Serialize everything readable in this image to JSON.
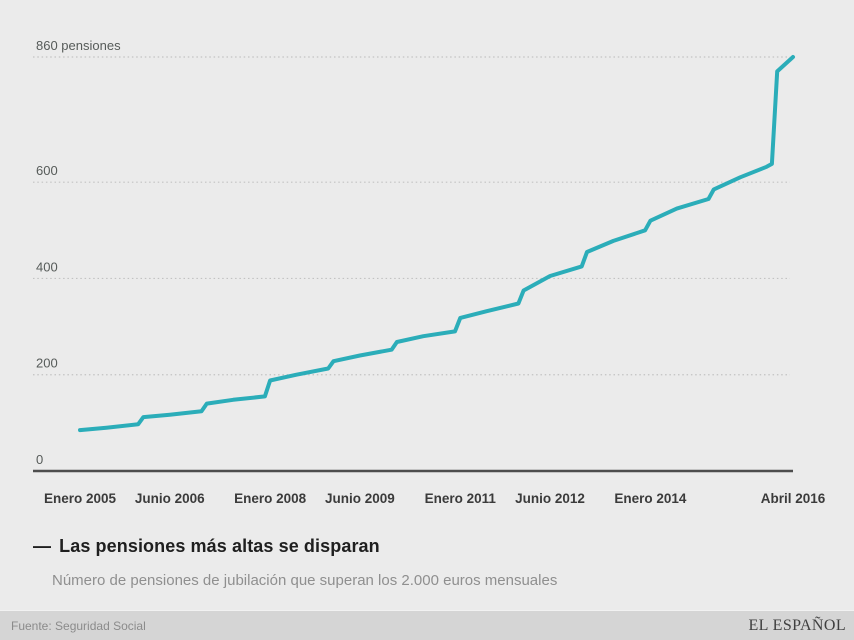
{
  "page": {
    "background": "#ebebeb",
    "footer_background": "#d5d5d5"
  },
  "chart": {
    "title_dash": "—",
    "title": "Las pensiones más altas se disparan",
    "subtitle": "Número de pensiones de jubilación que superan los 2.000 euros mensuales",
    "source": "Fuente: Seguridad Social",
    "brand": "EL ESPAÑOL",
    "line_color": "#2badb9",
    "grid_color": "#c2c2c2",
    "axis_color": "#4d4d4d",
    "y_label_color": "#565b59",
    "x_label_color": "#3b3b3b",
    "title_color": "#1f1f1f",
    "subtitle_color": "#8f8f8f"
  },
  "chart_data": {
    "type": "line",
    "title": "Las pensiones más altas se disparan",
    "subtitle": "Número de pensiones de jubilación que superan los 2.000 euros mensuales",
    "unit": "pensiones",
    "ylim": [
      0,
      860
    ],
    "grid": "dotted-horizontal",
    "legend": "none",
    "x_axis_type": "monthly, months counted from Enero 2005 (m=0) to Abril 2016 (m=135)",
    "x_ticks": [
      {
        "m": 0,
        "label": "Enero 2005"
      },
      {
        "m": 17,
        "label": "Junio 2006"
      },
      {
        "m": 36,
        "label": "Enero 2008"
      },
      {
        "m": 53,
        "label": "Junio 2009"
      },
      {
        "m": 72,
        "label": "Enero 2011"
      },
      {
        "m": 89,
        "label": "Junio 2012"
      },
      {
        "m": 108,
        "label": "Enero 2014"
      },
      {
        "m": 135,
        "label": "Abril 2016"
      }
    ],
    "y_ticks": [
      {
        "value": 0,
        "label": "0"
      },
      {
        "value": 200,
        "label": "200"
      },
      {
        "value": 400,
        "label": "400"
      },
      {
        "value": 600,
        "label": "600"
      },
      {
        "value": 860,
        "label": "860 pensiones"
      }
    ],
    "series": [
      {
        "name": "pensiones de jubilación que superan los 2.000 euros mensuales",
        "points_format": [
          "months_since_enero_2005",
          "value"
        ],
        "points": [
          [
            0,
            85
          ],
          [
            5,
            90
          ],
          [
            11,
            97
          ],
          [
            12,
            112
          ],
          [
            17,
            117
          ],
          [
            23,
            124
          ],
          [
            24,
            140
          ],
          [
            29,
            148
          ],
          [
            35,
            155
          ],
          [
            36,
            188
          ],
          [
            41,
            200
          ],
          [
            47,
            213
          ],
          [
            48,
            228
          ],
          [
            53,
            240
          ],
          [
            59,
            252
          ],
          [
            60,
            268
          ],
          [
            65,
            280
          ],
          [
            71,
            290
          ],
          [
            72,
            318
          ],
          [
            77,
            332
          ],
          [
            83,
            348
          ],
          [
            84,
            375
          ],
          [
            89,
            405
          ],
          [
            95,
            425
          ],
          [
            96,
            455
          ],
          [
            101,
            478
          ],
          [
            107,
            500
          ],
          [
            108,
            520
          ],
          [
            113,
            545
          ],
          [
            119,
            565
          ],
          [
            120,
            585
          ],
          [
            125,
            610
          ],
          [
            130,
            632
          ],
          [
            131,
            638
          ],
          [
            132,
            830
          ],
          [
            135,
            860
          ]
        ]
      }
    ]
  }
}
